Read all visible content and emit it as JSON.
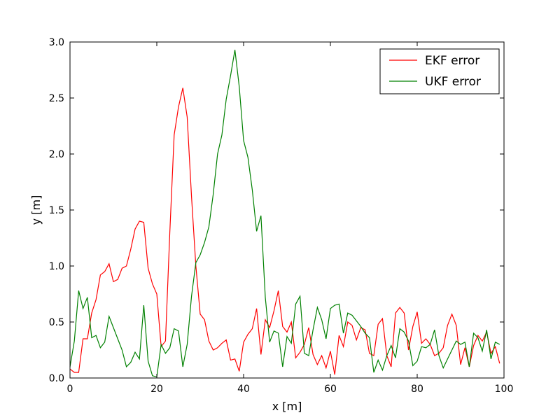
{
  "chart_data": {
    "type": "line",
    "title": "",
    "xlabel": "x [m]",
    "ylabel": "y [m]",
    "xlim": [
      0,
      100
    ],
    "ylim": [
      0,
      3.0
    ],
    "xticks": [
      "0",
      "20",
      "40",
      "60",
      "80",
      "100"
    ],
    "yticks": [
      "0.0",
      "0.5",
      "1.0",
      "1.5",
      "2.0",
      "2.5",
      "3.0"
    ],
    "xtick_values": [
      0,
      20,
      40,
      60,
      80,
      100
    ],
    "ytick_values": [
      0,
      0.5,
      1.0,
      1.5,
      2.0,
      2.5,
      3.0
    ],
    "grid": false,
    "legend_position": "top-right",
    "x": [
      0,
      1,
      2,
      3,
      4,
      5,
      6,
      7,
      8,
      9,
      10,
      11,
      12,
      13,
      14,
      15,
      16,
      17,
      18,
      19,
      20,
      21,
      22,
      23,
      24,
      25,
      26,
      27,
      28,
      29,
      30,
      31,
      32,
      33,
      34,
      35,
      36,
      37,
      38,
      39,
      40,
      41,
      42,
      43,
      44,
      45,
      46,
      47,
      48,
      49,
      50,
      51,
      52,
      53,
      54,
      55,
      56,
      57,
      58,
      59,
      60,
      61,
      62,
      63,
      64,
      65,
      66,
      67,
      68,
      69,
      70,
      71,
      72,
      73,
      74,
      75,
      76,
      77,
      78,
      79,
      80,
      81,
      82,
      83,
      84,
      85,
      86,
      87,
      88,
      89,
      90,
      91,
      92,
      93,
      94,
      95,
      96,
      97,
      98,
      99
    ],
    "series": [
      {
        "name": "EKF error",
        "color": "#ff0000",
        "values": [
          0.08,
          0.05,
          0.05,
          0.35,
          0.35,
          0.58,
          0.7,
          0.92,
          0.95,
          1.02,
          0.86,
          0.88,
          0.98,
          1.0,
          1.15,
          1.33,
          1.4,
          1.39,
          0.98,
          0.84,
          0.75,
          0.28,
          0.33,
          1.3,
          2.17,
          2.42,
          2.59,
          2.33,
          1.62,
          1.0,
          0.57,
          0.52,
          0.33,
          0.25,
          0.27,
          0.31,
          0.34,
          0.16,
          0.17,
          0.06,
          0.32,
          0.39,
          0.44,
          0.62,
          0.21,
          0.52,
          0.45,
          0.6,
          0.78,
          0.46,
          0.41,
          0.5,
          0.18,
          0.23,
          0.3,
          0.45,
          0.21,
          0.12,
          0.2,
          0.09,
          0.24,
          0.03,
          0.38,
          0.28,
          0.5,
          0.47,
          0.34,
          0.45,
          0.43,
          0.22,
          0.2,
          0.48,
          0.53,
          0.2,
          0.1,
          0.58,
          0.63,
          0.58,
          0.25,
          0.46,
          0.59,
          0.31,
          0.35,
          0.3,
          0.2,
          0.22,
          0.27,
          0.47,
          0.57,
          0.47,
          0.12,
          0.27,
          0.1,
          0.29,
          0.38,
          0.33,
          0.41,
          0.22,
          0.28,
          0.13
        ]
      },
      {
        "name": "UKF error",
        "color": "#008000",
        "values": [
          0.1,
          0.33,
          0.78,
          0.62,
          0.72,
          0.36,
          0.38,
          0.27,
          0.32,
          0.55,
          0.45,
          0.35,
          0.25,
          0.1,
          0.14,
          0.23,
          0.17,
          0.65,
          0.15,
          0.02,
          0.01,
          0.3,
          0.22,
          0.27,
          0.44,
          0.42,
          0.1,
          0.3,
          0.73,
          1.03,
          1.1,
          1.21,
          1.35,
          1.64,
          2.0,
          2.17,
          2.49,
          2.7,
          2.93,
          2.6,
          2.12,
          1.97,
          1.68,
          1.31,
          1.45,
          0.72,
          0.32,
          0.42,
          0.4,
          0.1,
          0.37,
          0.31,
          0.66,
          0.73,
          0.22,
          0.2,
          0.43,
          0.63,
          0.52,
          0.35,
          0.62,
          0.65,
          0.66,
          0.4,
          0.58,
          0.56,
          0.51,
          0.46,
          0.4,
          0.36,
          0.05,
          0.16,
          0.07,
          0.2,
          0.29,
          0.18,
          0.44,
          0.41,
          0.33,
          0.11,
          0.15,
          0.28,
          0.27,
          0.3,
          0.43,
          0.2,
          0.09,
          0.17,
          0.25,
          0.33,
          0.3,
          0.32,
          0.1,
          0.4,
          0.36,
          0.24,
          0.43,
          0.17,
          0.32,
          0.3
        ]
      }
    ]
  }
}
